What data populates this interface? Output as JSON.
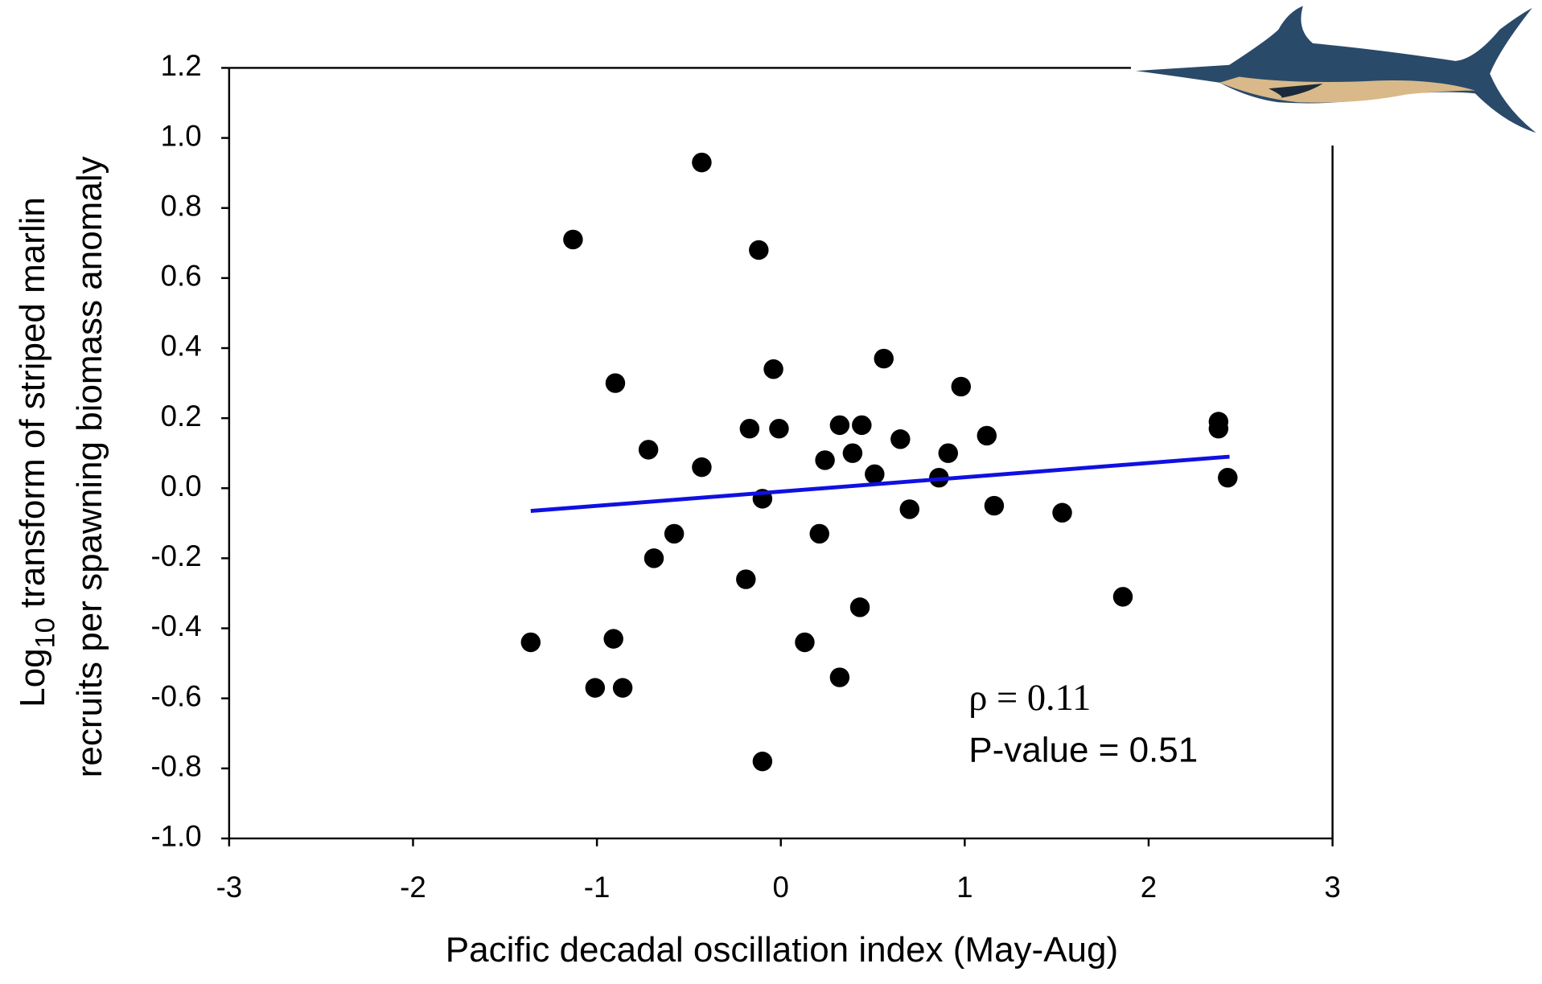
{
  "chart_data": {
    "type": "scatter",
    "xlabel": "Pacific decadal oscillation index (May-Aug)",
    "ylabel": {
      "prefix": "Log",
      "subscript": "10",
      "rest": "transform of striped marlin",
      "line2": "recruits per spawning biomass anomaly"
    },
    "annotations": [
      "ρ = 0.11",
      "P-value = 0.51"
    ],
    "xlim": [
      -3,
      3
    ],
    "ylim": [
      -1.0,
      1.2
    ],
    "xticks": [
      -3,
      -2,
      -1,
      0,
      1,
      2,
      3
    ],
    "yticks": [
      {
        "value": -1.0,
        "label": "-1.0"
      },
      -0.8,
      -0.6,
      -0.4,
      -0.2,
      {
        "value": 0.0,
        "label": "0.0"
      },
      0.2,
      0.4,
      0.6,
      0.8,
      {
        "value": 1.0,
        "label": "1.0"
      },
      1.2
    ],
    "color": "#000000",
    "x": [
      -0.43,
      -1.13,
      -0.12,
      -0.9,
      -0.04,
      0.56,
      0.98,
      -0.17,
      -0.01,
      0.32,
      0.44,
      0.65,
      1.12,
      2.38,
      2.38,
      -0.72,
      -0.43,
      0.24,
      0.39,
      0.51,
      0.91,
      0.86,
      2.43,
      -0.1,
      0.7,
      1.16,
      1.53,
      -0.58,
      0.21,
      -0.69,
      -0.19,
      1.86,
      0.43,
      -1.36,
      -0.91,
      0.13,
      -1.01,
      -0.86,
      0.32,
      -0.1
    ],
    "values": [
      0.93,
      0.71,
      0.68,
      0.3,
      0.34,
      0.37,
      0.29,
      0.17,
      0.17,
      0.18,
      0.18,
      0.14,
      0.15,
      0.19,
      0.17,
      0.11,
      0.06,
      0.08,
      0.1,
      0.04,
      0.1,
      0.03,
      0.03,
      -0.03,
      -0.06,
      -0.05,
      -0.07,
      -0.13,
      -0.13,
      -0.2,
      -0.26,
      -0.31,
      -0.34,
      -0.44,
      -0.43,
      -0.44,
      -0.57,
      -0.57,
      -0.54,
      -0.78
    ],
    "trend_line": {
      "color": "#1010e0",
      "x": [
        -1.36,
        2.44
      ],
      "values": [
        -0.065,
        0.09
      ]
    }
  }
}
